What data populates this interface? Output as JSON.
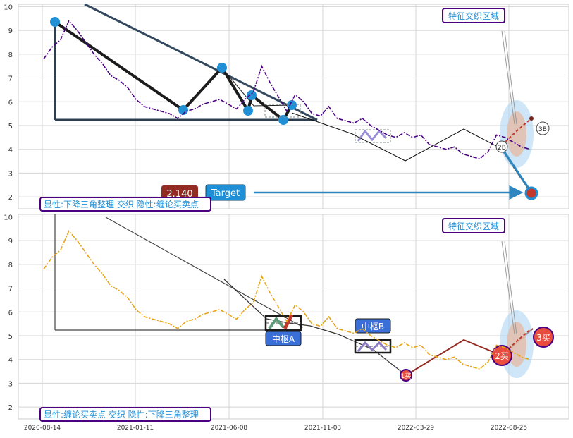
{
  "chart_data": [
    {
      "type": "line",
      "panel": "top",
      "ylim": [
        1.5,
        10.1
      ],
      "y_ticks": [
        "2",
        "3",
        "4",
        "5",
        "6",
        "7",
        "8",
        "9",
        "10"
      ],
      "series_color": "#4b0082",
      "caption": "显性:下降三角整理 交织 隐性:缠论买卖点",
      "region_label": "特征交织区域",
      "price_badge": "2.140",
      "target_label": "Target",
      "markers": [
        "2B",
        "3B"
      ],
      "series": [
        {
          "values": [
            7.8,
            8.3,
            8.6,
            9.4,
            9.0,
            8.5,
            8.0,
            7.6,
            7.1,
            6.9,
            6.6,
            6.1,
            5.8,
            5.7,
            5.6,
            5.5,
            5.3,
            5.6,
            5.7,
            5.9,
            6.0,
            6.1,
            5.9,
            5.7,
            6.1,
            6.4,
            7.5,
            6.8,
            6.2,
            5.6,
            6.3,
            6.0,
            5.5,
            5.4,
            5.8,
            5.3,
            5.2,
            5.1,
            5.3,
            5.0,
            4.8,
            4.6,
            4.5,
            4.7,
            4.5,
            4.6,
            4.2,
            4.1,
            4.0,
            4.1,
            3.8,
            3.7,
            3.6,
            3.9,
            4.6,
            4.5,
            4.3,
            4.1,
            4.0
          ]
        }
      ]
    },
    {
      "type": "line",
      "panel": "bottom",
      "ylim": [
        1.5,
        10.1
      ],
      "y_ticks": [
        "2",
        "3",
        "4",
        "5",
        "6",
        "7",
        "8",
        "9",
        "10"
      ],
      "series_color": "#e8a317",
      "caption": "显性:缠论买卖点 交织 隐性:下降三角整理",
      "region_label": "特征交织区域",
      "pivot_labels": [
        "中枢A",
        "中枢B"
      ],
      "buy_labels": [
        "1买",
        "2买",
        "3买"
      ],
      "x_ticks": [
        "2020-08-14",
        "2021-01-11",
        "2021-06-08",
        "2021-11-03",
        "2022-03-29",
        "2022-08-25"
      ],
      "series": [
        {
          "values": [
            7.8,
            8.3,
            8.6,
            9.4,
            9.0,
            8.5,
            8.0,
            7.6,
            7.1,
            6.9,
            6.6,
            6.1,
            5.8,
            5.7,
            5.6,
            5.5,
            5.3,
            5.6,
            5.7,
            5.9,
            6.0,
            6.1,
            5.9,
            5.7,
            6.1,
            6.4,
            7.5,
            6.8,
            6.2,
            5.6,
            6.3,
            6.0,
            5.5,
            5.4,
            5.8,
            5.3,
            5.2,
            5.1,
            5.3,
            5.0,
            4.8,
            4.6,
            4.5,
            4.7,
            4.5,
            4.6,
            4.2,
            4.1,
            4.0,
            4.1,
            3.8,
            3.7,
            3.6,
            3.9,
            4.6,
            4.5,
            4.3,
            4.1,
            4.0
          ]
        }
      ]
    }
  ]
}
